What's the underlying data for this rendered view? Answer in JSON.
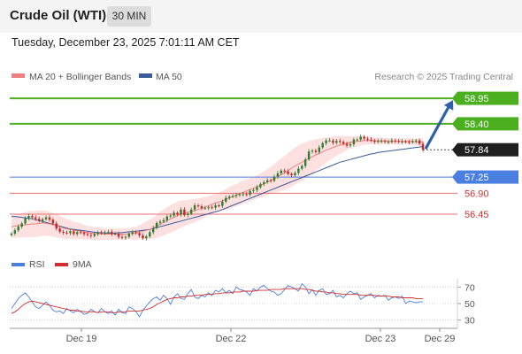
{
  "header": {
    "title": "Crude Oil (WTI)",
    "timeframe": "30 MIN"
  },
  "datetime": "Tuesday, December 23, 2025 7:01:11 AM CET",
  "colors": {
    "candle_up": "#2e7d32",
    "candle_down": "#c62828",
    "ma20": "#f08080",
    "band_fill": "#fde0e0",
    "ma50": "#3a5a9a",
    "resistance": "#4caf1f",
    "support": "#e57373",
    "pivot": "#4a7fe0",
    "current": "#222222",
    "arrow": "#2f5fa8",
    "rsi": "#4a7fe0",
    "rsi_ma": "#d32f2f"
  },
  "chart_data": [
    {
      "type": "candlestick",
      "legend": [
        {
          "label": "MA 20 + Bollinger Bands",
          "color": "#f08080"
        },
        {
          "label": "MA 50",
          "color": "#3a5a9a"
        }
      ],
      "credit": "Research © 2025 Trading Central",
      "x_ticks": [
        "Dec 19",
        "Dec 22",
        "Dec 23",
        "Dec 29"
      ],
      "ylim": [
        55.8,
        59.2
      ],
      "levels": [
        {
          "value": 58.95,
          "label": "58.95",
          "kind": "resistance"
        },
        {
          "value": 58.4,
          "label": "58.40",
          "kind": "resistance"
        },
        {
          "value": 57.84,
          "label": "57.84",
          "kind": "current"
        },
        {
          "value": 57.25,
          "label": "57.25",
          "kind": "pivot"
        },
        {
          "value": 56.9,
          "label": "56.90",
          "kind": "support"
        },
        {
          "value": 56.45,
          "label": "56.45",
          "kind": "support"
        }
      ],
      "forecast_arrow": {
        "from": 57.84,
        "to": 58.95
      },
      "series": [
        {
          "name": "Price",
          "close": [
            56.03,
            56.1,
            56.18,
            56.25,
            56.36,
            56.41,
            56.38,
            56.35,
            56.3,
            56.34,
            56.38,
            56.33,
            56.25,
            56.14,
            56.07,
            56.05,
            56.04,
            56.08,
            56.02,
            56.06,
            56.05,
            56.02,
            56.0,
            55.98,
            56.02,
            56.05,
            56.04,
            56.06,
            56.07,
            56.02,
            56.03,
            55.96,
            55.94,
            55.96,
            56.03,
            56.06,
            56.04,
            55.99,
            55.93,
            55.97,
            56.06,
            56.15,
            56.26,
            56.29,
            56.32,
            56.4,
            56.42,
            56.48,
            56.44,
            56.55,
            56.43,
            56.46,
            56.55,
            56.64,
            56.62,
            56.58,
            56.58,
            56.6,
            56.59,
            56.64,
            56.63,
            56.72,
            56.8,
            56.83,
            56.84,
            56.86,
            56.88,
            56.88,
            56.87,
            56.95,
            56.97,
            57.03,
            57.1,
            57.14,
            57.18,
            57.17,
            57.26,
            57.33,
            57.39,
            57.37,
            57.32,
            57.29,
            57.34,
            57.43,
            57.49,
            57.63,
            57.8,
            57.82,
            57.79,
            57.89,
            57.98,
            58.04,
            58.04,
            57.99,
            58.03,
            58.01,
            57.97,
            57.93,
            57.96,
            58.06,
            58.06,
            58.12,
            58.08,
            58.06,
            58.04,
            58.01,
            58.03,
            58.03,
            58.01,
            58.01,
            58.04,
            58.03,
            58.01,
            58.02,
            58.01,
            58.0,
            58.02,
            58.04,
            57.97,
            57.84
          ],
          "ma20": [
            56.18,
            56.19,
            56.2,
            56.21,
            56.22,
            56.23,
            56.24,
            56.24,
            56.25,
            56.26,
            56.25,
            56.24,
            56.22,
            56.2,
            56.18,
            56.15,
            56.13,
            56.12,
            56.1,
            56.09,
            56.08,
            56.06,
            56.05,
            56.04,
            56.03,
            56.03,
            56.02,
            56.02,
            56.02,
            56.02,
            56.02,
            56.02,
            56.02,
            56.02,
            56.03,
            56.03,
            56.04,
            56.06,
            56.08,
            56.1,
            56.12,
            56.15,
            56.19,
            56.23,
            56.27,
            56.31,
            56.35,
            56.38,
            56.42,
            56.45,
            56.47,
            56.49,
            56.51,
            56.53,
            56.55,
            56.57,
            56.6,
            56.63,
            56.66,
            56.69,
            56.71,
            56.74,
            56.77,
            56.8,
            56.83,
            56.86,
            56.89,
            56.92,
            56.95,
            56.98,
            57.01,
            57.04,
            57.07,
            57.1,
            57.14,
            57.18,
            57.22,
            57.26,
            57.3,
            57.34,
            57.39,
            57.44,
            57.49,
            57.53,
            57.57,
            57.61,
            57.65,
            57.69,
            57.73,
            57.76,
            57.8,
            57.83,
            57.86,
            57.89,
            57.92,
            57.94,
            57.96,
            57.98,
            58.0,
            58.01,
            58.02,
            58.03,
            58.04,
            58.04,
            58.04,
            58.03,
            58.03,
            58.03,
            58.03,
            58.02,
            58.02,
            58.02,
            58.02,
            58.02,
            58.02,
            58.02,
            58.02,
            58.01,
            58.01,
            58.0
          ],
          "ma50": [
            56.4,
            56.4,
            56.39,
            56.38,
            56.37,
            56.36,
            56.35,
            56.33,
            56.31,
            56.29,
            56.27,
            56.25,
            56.23,
            56.21,
            56.19,
            56.17,
            56.15,
            56.13,
            56.12,
            56.11,
            56.1,
            56.09,
            56.08,
            56.07,
            56.06,
            56.05,
            56.05,
            56.04,
            56.04,
            56.04,
            56.04,
            56.05,
            56.05,
            56.06,
            56.07,
            56.07,
            56.08,
            56.09,
            56.1,
            56.11,
            56.12,
            56.14,
            56.16,
            56.18,
            56.2,
            56.22,
            56.24,
            56.26,
            56.28,
            56.3,
            56.32,
            56.34,
            56.36,
            56.38,
            56.4,
            56.42,
            56.44,
            56.46,
            56.48,
            56.5,
            56.52,
            56.55,
            56.58,
            56.61,
            56.64,
            56.67,
            56.7,
            56.73,
            56.76,
            56.79,
            56.82,
            56.85,
            56.88,
            56.91,
            56.94,
            56.97,
            57.0,
            57.03,
            57.06,
            57.09,
            57.12,
            57.15,
            57.18,
            57.21,
            57.24,
            57.27,
            57.3,
            57.33,
            57.36,
            57.39,
            57.42,
            57.45,
            57.48,
            57.51,
            57.54,
            57.57,
            57.59,
            57.61,
            57.63,
            57.65,
            57.67,
            57.69,
            57.71,
            57.73,
            57.75,
            57.76,
            57.78,
            57.79,
            57.8,
            57.81,
            57.82,
            57.83,
            57.84,
            57.85,
            57.86,
            57.87,
            57.88,
            57.89,
            57.9,
            57.91
          ],
          "bb_width": [
            0.24,
            0.25,
            0.26,
            0.26,
            0.27,
            0.28,
            0.28,
            0.28,
            0.28,
            0.27,
            0.27,
            0.26,
            0.26,
            0.25,
            0.24,
            0.23,
            0.22,
            0.2,
            0.19,
            0.18,
            0.17,
            0.16,
            0.15,
            0.15,
            0.14,
            0.14,
            0.13,
            0.13,
            0.12,
            0.12,
            0.12,
            0.12,
            0.12,
            0.12,
            0.12,
            0.13,
            0.14,
            0.15,
            0.17,
            0.19,
            0.21,
            0.23,
            0.25,
            0.27,
            0.28,
            0.29,
            0.3,
            0.3,
            0.3,
            0.29,
            0.28,
            0.27,
            0.26,
            0.25,
            0.24,
            0.23,
            0.22,
            0.21,
            0.2,
            0.2,
            0.2,
            0.21,
            0.22,
            0.23,
            0.24,
            0.24,
            0.25,
            0.25,
            0.25,
            0.25,
            0.25,
            0.25,
            0.26,
            0.27,
            0.28,
            0.29,
            0.31,
            0.33,
            0.35,
            0.36,
            0.38,
            0.39,
            0.4,
            0.4,
            0.4,
            0.39,
            0.38,
            0.36,
            0.34,
            0.32,
            0.3,
            0.27,
            0.25,
            0.23,
            0.21,
            0.19,
            0.17,
            0.15,
            0.13,
            0.12,
            0.11,
            0.1,
            0.09,
            0.09,
            0.08,
            0.08,
            0.08,
            0.07,
            0.07,
            0.07,
            0.07,
            0.07,
            0.07,
            0.07,
            0.07,
            0.07,
            0.07,
            0.07,
            0.08,
            0.09
          ]
        }
      ]
    },
    {
      "type": "line",
      "legend": [
        {
          "label": "RSI",
          "color": "#4a7fe0"
        },
        {
          "label": "9MA",
          "color": "#d32f2f"
        }
      ],
      "ylim": [
        20,
        80
      ],
      "y_ticks": [
        70,
        50,
        30
      ],
      "series": [
        {
          "name": "RSI",
          "values": [
            44,
            50,
            56,
            60,
            63,
            58,
            52,
            46,
            44,
            48,
            52,
            48,
            42,
            40,
            41,
            38,
            44,
            41,
            39,
            43,
            40,
            37,
            38,
            43,
            40,
            39,
            44,
            40,
            38,
            41,
            36,
            43,
            39,
            38,
            46,
            44,
            40,
            34,
            42,
            47,
            52,
            56,
            58,
            54,
            60,
            56,
            49,
            58,
            62,
            56,
            55,
            62,
            67,
            58,
            56,
            60,
            58,
            63,
            60,
            66,
            64,
            68,
            63,
            66,
            62,
            70,
            67,
            66,
            64,
            60,
            68,
            65,
            70,
            72,
            68,
            65,
            64,
            60,
            62,
            67,
            72,
            70,
            68,
            65,
            74,
            70,
            62,
            67,
            60,
            66,
            68,
            61,
            62,
            66,
            58,
            60,
            57,
            62,
            65,
            62,
            63,
            55,
            58,
            60,
            62,
            57,
            60,
            59,
            60,
            54,
            57,
            58,
            56,
            59,
            50,
            53,
            52,
            51,
            52,
            52
          ]
        },
        {
          "name": "9MA",
          "values": [
            38,
            40,
            43,
            47,
            50,
            52,
            53,
            52,
            51,
            50,
            49,
            48,
            47,
            46,
            45,
            44,
            43,
            42,
            42,
            41,
            41,
            40,
            40,
            40,
            40,
            39,
            40,
            40,
            40,
            39,
            39,
            40,
            40,
            40,
            41,
            41,
            41,
            41,
            42,
            43,
            44,
            46,
            49,
            51,
            53,
            55,
            56,
            57,
            57,
            58,
            58,
            59,
            59,
            60,
            60,
            60,
            61,
            61,
            61,
            62,
            62,
            63,
            63,
            63,
            64,
            64,
            64,
            65,
            65,
            65,
            65,
            66,
            66,
            66,
            66,
            67,
            67,
            67,
            67,
            68,
            68,
            68,
            68,
            68,
            68,
            67,
            67,
            66,
            65,
            65,
            64,
            64,
            63,
            63,
            62,
            62,
            61,
            61,
            61,
            61,
            61,
            60,
            60,
            60,
            60,
            60,
            59,
            59,
            59,
            59,
            58,
            58,
            58,
            57,
            57,
            57,
            57,
            56,
            56,
            56
          ]
        }
      ]
    }
  ]
}
